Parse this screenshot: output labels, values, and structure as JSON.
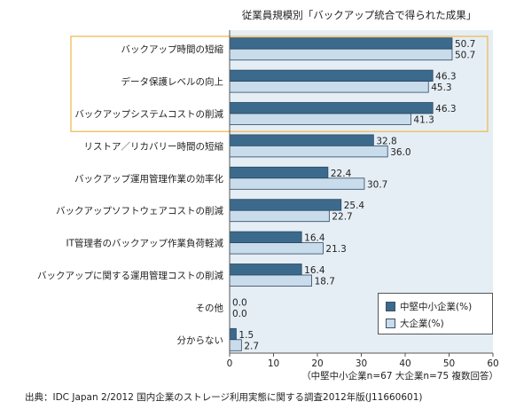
{
  "chart_data": {
    "type": "bar",
    "orientation": "horizontal",
    "title": "従業員規模別「バックアップ統合で得られた成果」",
    "categories": [
      "バックアップ時間の短縮",
      "データ保護レベルの向上",
      "バックアップシステムコストの削減",
      "リストア／リカバリー時間の短縮",
      "バックアップ運用管理作業の効率化",
      "バックアップソフトウェアコストの削減",
      "IT管理者のバックアップ作業負荷軽減",
      "バックアップに関する運用管理コストの削減",
      "その他",
      "分からない"
    ],
    "series": [
      {
        "name": "中堅中小企業(%)",
        "values": [
          50.7,
          46.3,
          46.3,
          32.8,
          22.4,
          25.4,
          16.4,
          16.4,
          0.0,
          1.5
        ]
      },
      {
        "name": "大企業(%)",
        "values": [
          50.7,
          45.3,
          41.3,
          36.0,
          30.7,
          22.7,
          21.3,
          18.7,
          0.0,
          2.7
        ]
      }
    ],
    "value_labels": [
      [
        "50.7",
        "46.3",
        "46.3",
        "32.8",
        "22.4",
        "25.4",
        "16.4",
        "16.4",
        "0.0",
        "1.5"
      ],
      [
        "50.7",
        "45.3",
        "41.3",
        "36.0",
        "30.7",
        "22.7",
        "21.3",
        "18.7",
        "0.0",
        "2.7"
      ]
    ],
    "xlim": [
      0,
      60
    ],
    "xticks": [
      "0",
      "10",
      "20",
      "30",
      "40",
      "50",
      "60"
    ],
    "grid": false,
    "legend_position": "bottom-right",
    "highlighted_categories": 3,
    "colors": {
      "series_sme": "#3b6a8c",
      "series_large": "#c8dcec",
      "plot_background": "#e5eef5",
      "highlight_border": "#f0b64a",
      "bar_border": "#2f4660"
    }
  },
  "note": "（中堅中小企業n=67 大企業n=75 複数回答）",
  "source": "出典：IDC Japan 2/2012 国内企業のストレージ利用実態に関する調査2012年版(J11660601)"
}
